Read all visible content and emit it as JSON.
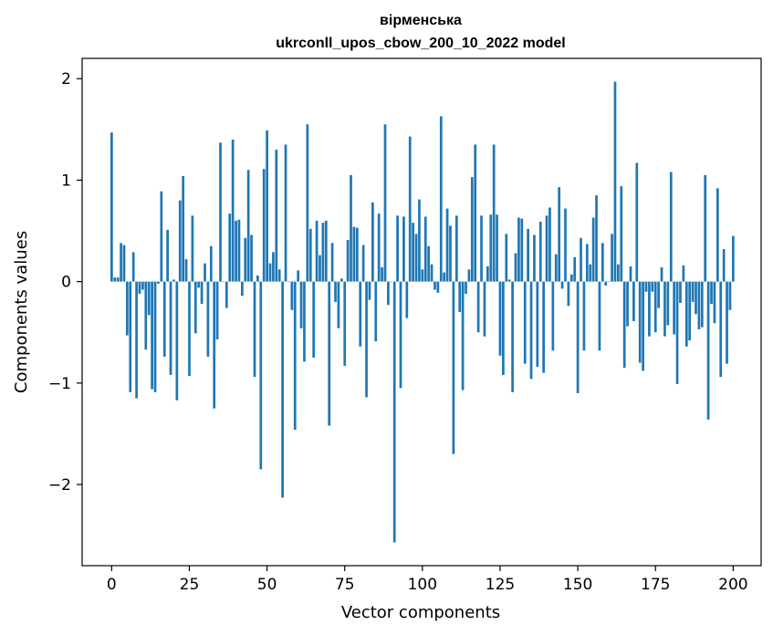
{
  "chart_data": {
    "type": "bar",
    "title_line1": "вірменська",
    "title_line2": "ukrconll_upos_cbow_200_10_2022 model",
    "xlabel": "Vector components",
    "ylabel": "Components values",
    "xlim": [
      -9.5,
      209
    ],
    "ylim": [
      -2.8,
      2.2
    ],
    "x_ticks": [
      0,
      25,
      50,
      75,
      100,
      125,
      150,
      175,
      200
    ],
    "x_tick_labels": [
      "0",
      "25",
      "50",
      "75",
      "100",
      "125",
      "150",
      "175",
      "200"
    ],
    "y_ticks": [
      -2,
      -1,
      0,
      1,
      2
    ],
    "y_tick_labels": [
      "−2",
      "−1",
      "0",
      "1",
      "2"
    ],
    "grid": false,
    "bar_color": "#1f77b4",
    "values": [
      1.47,
      0.04,
      0.04,
      0.38,
      0.36,
      -0.53,
      -1.09,
      0.29,
      -1.15,
      -0.12,
      -0.08,
      -0.67,
      -0.33,
      -1.06,
      -1.09,
      -0.02,
      0.89,
      -0.74,
      0.51,
      -0.92,
      0.02,
      -1.17,
      0.8,
      1.04,
      0.22,
      -0.93,
      0.65,
      -0.51,
      -0.06,
      -0.22,
      0.18,
      -0.74,
      0.35,
      -1.25,
      -0.57,
      1.37,
      0.0,
      -0.26,
      0.67,
      1.4,
      0.6,
      0.61,
      -0.14,
      0.43,
      1.1,
      0.46,
      -0.94,
      0.06,
      -1.85,
      1.11,
      1.49,
      0.18,
      0.29,
      1.3,
      0.12,
      -2.13,
      1.35,
      0.0,
      -0.28,
      -1.46,
      0.11,
      -0.46,
      -0.79,
      1.55,
      0.52,
      -0.75,
      0.6,
      0.26,
      0.58,
      0.6,
      -1.42,
      0.38,
      -0.2,
      -0.46,
      0.03,
      -0.83,
      0.41,
      1.05,
      0.54,
      0.53,
      -0.64,
      0.36,
      -1.14,
      -0.18,
      0.78,
      -0.59,
      0.67,
      0.14,
      1.55,
      -0.23,
      0.0,
      -2.57,
      0.65,
      -1.05,
      0.64,
      -0.36,
      1.43,
      0.58,
      0.47,
      0.81,
      0.12,
      0.64,
      0.35,
      0.17,
      -0.08,
      -0.11,
      1.63,
      0.09,
      0.72,
      0.55,
      -1.7,
      0.65,
      -0.3,
      -1.07,
      -0.12,
      0.12,
      1.03,
      1.35,
      -0.5,
      0.65,
      -0.54,
      0.15,
      0.66,
      1.35,
      0.66,
      -0.73,
      -0.92,
      0.47,
      0.02,
      -1.09,
      0.28,
      0.63,
      0.62,
      -0.81,
      0.52,
      -0.96,
      0.46,
      -0.84,
      0.59,
      -0.9,
      0.65,
      0.73,
      -0.68,
      0.27,
      0.93,
      -0.07,
      0.72,
      -0.24,
      0.07,
      0.24,
      -1.1,
      0.43,
      -0.68,
      0.37,
      0.17,
      0.63,
      0.85,
      -0.68,
      0.38,
      -0.04,
      0.0,
      0.47,
      1.97,
      0.17,
      0.94,
      -0.85,
      -0.44,
      0.15,
      -0.39,
      1.17,
      -0.8,
      -0.88,
      -0.1,
      -0.54,
      -0.1,
      -0.5,
      -0.26,
      0.14,
      -0.54,
      -0.43,
      1.08,
      -0.52,
      -1.01,
      -0.21,
      0.16,
      -0.64,
      -0.58,
      -0.2,
      -0.32,
      -0.47,
      -0.45,
      1.05,
      -1.36,
      -0.22,
      -0.41,
      0.92,
      -0.94,
      0.32,
      -0.81,
      -0.28,
      0.45
    ]
  }
}
